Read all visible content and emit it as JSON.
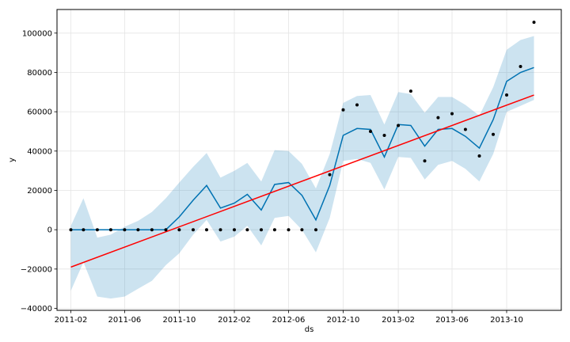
{
  "chart_data": {
    "type": "line",
    "xlabel": "ds",
    "ylabel": "y",
    "xlim": [
      "2011-01-01",
      "2014-01-31"
    ],
    "ylim": [
      -41000,
      112000
    ],
    "grid": true,
    "x_ticks": [
      "2011-02",
      "2011-06",
      "2011-10",
      "2012-02",
      "2012-06",
      "2012-10",
      "2013-02",
      "2013-06",
      "2013-10"
    ],
    "y_ticks": [
      -40000,
      -20000,
      0,
      20000,
      40000,
      60000,
      80000,
      100000
    ],
    "dates": [
      "2011-02-01",
      "2011-03-01",
      "2011-04-01",
      "2011-05-01",
      "2011-06-01",
      "2011-07-01",
      "2011-08-01",
      "2011-09-01",
      "2011-10-01",
      "2011-11-01",
      "2011-12-01",
      "2012-01-01",
      "2012-02-01",
      "2012-03-01",
      "2012-04-01",
      "2012-05-01",
      "2012-06-01",
      "2012-07-01",
      "2012-08-01",
      "2012-09-01",
      "2012-10-01",
      "2012-11-01",
      "2012-12-01",
      "2013-01-01",
      "2013-02-01",
      "2013-03-01",
      "2013-04-01",
      "2013-05-01",
      "2013-06-01",
      "2013-07-01",
      "2013-08-01",
      "2013-09-01",
      "2013-10-01",
      "2013-11-01",
      "2013-12-01"
    ],
    "series": [
      {
        "role": "observed",
        "style": "points",
        "color": "#000000",
        "values": [
          0,
          0,
          0,
          0,
          0,
          0,
          0,
          0,
          0,
          0,
          0,
          0,
          0,
          0,
          0,
          0,
          0,
          0,
          0,
          28000,
          61000,
          63500,
          50000,
          48000,
          53000,
          70500,
          35000,
          57000,
          59000,
          51000,
          37500,
          48500,
          68500,
          83000,
          105500
        ]
      },
      {
        "role": "forecast",
        "style": "line",
        "color": "#0072B2",
        "values": [
          0,
          0,
          0,
          0,
          0,
          0,
          0,
          0,
          6500,
          15000,
          22500,
          11000,
          13500,
          18000,
          10000,
          23000,
          24000,
          17500,
          5000,
          22500,
          48000,
          51500,
          51000,
          37000,
          53500,
          53000,
          42500,
          51000,
          51500,
          47500,
          41500,
          56000,
          75500,
          80000,
          82500
        ]
      }
    ],
    "uncertainty_band": {
      "color": "#0072B2",
      "lower": [
        -31000,
        -16500,
        -34000,
        -35000,
        -34000,
        -30000,
        -26000,
        -18000,
        -12000,
        -2500,
        5000,
        -6000,
        -3500,
        2000,
        -8000,
        6000,
        7000,
        0,
        -11500,
        6000,
        35000,
        36000,
        34000,
        20500,
        37000,
        36500,
        25500,
        33000,
        35000,
        31000,
        24500,
        38500,
        60000,
        63000,
        66000
      ],
      "upper": [
        2000,
        16000,
        -4000,
        -2500,
        1500,
        4500,
        9000,
        16000,
        24000,
        32000,
        39000,
        26500,
        30000,
        34000,
        24500,
        40500,
        40000,
        33500,
        21000,
        38500,
        64500,
        68000,
        68500,
        53500,
        70000,
        69000,
        59500,
        67500,
        67500,
        63500,
        58000,
        72500,
        91500,
        96500,
        98500
      ]
    },
    "trendline": {
      "role": "changepoint trend",
      "color": "#ff0000",
      "start": {
        "x": "2011-02-01",
        "y": -19000
      },
      "end": {
        "x": "2013-12-01",
        "y": 68500
      }
    }
  }
}
